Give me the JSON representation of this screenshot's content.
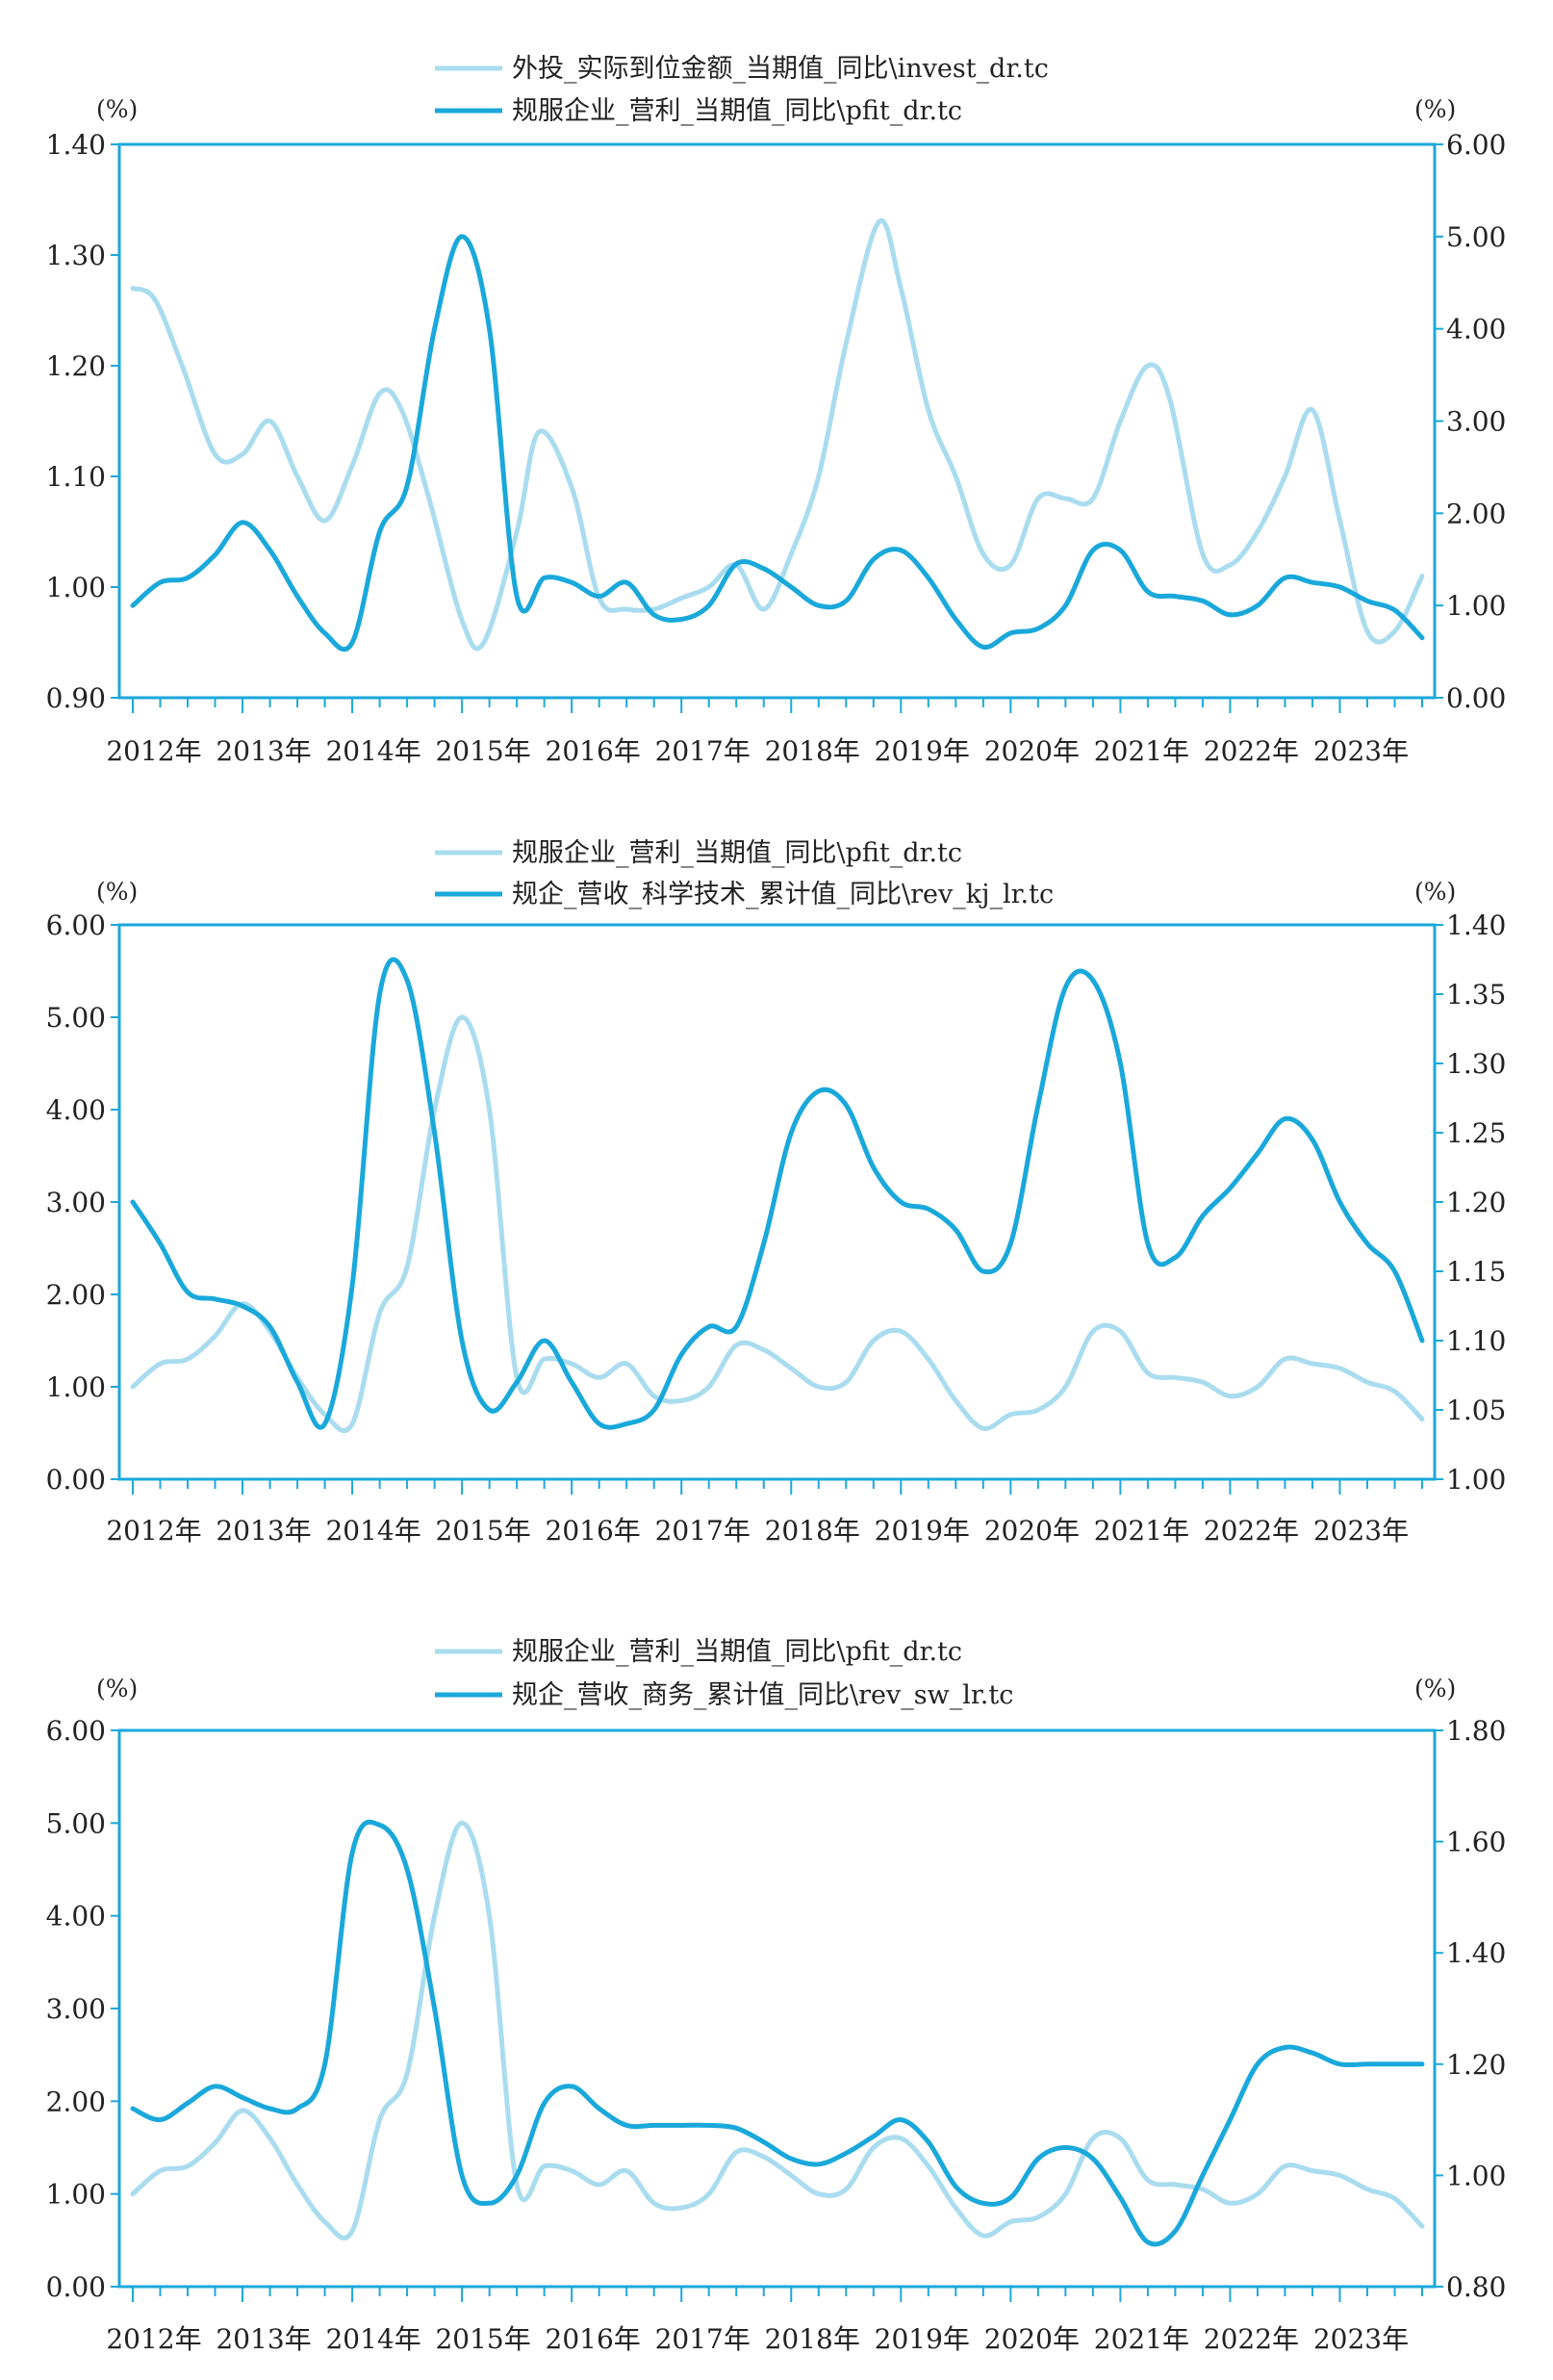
{
  "colors": {
    "light": "#a9dcef",
    "dark": "#1aa8db",
    "frame": "#1aa8db",
    "text": "#222222"
  },
  "chart_data": [
    {
      "type": "line",
      "title": "",
      "x_tick_labels": [
        "2012年",
        "2013年",
        "2014年",
        "2015年",
        "2016年",
        "2017年",
        "2018年",
        "2019年",
        "2020年",
        "2021年",
        "2022年",
        "2023年"
      ],
      "left_axis": {
        "unit": "(%)",
        "ylim": [
          0.9,
          1.4
        ],
        "ticks": [
          "0.90",
          "1.00",
          "1.10",
          "1.20",
          "1.30",
          "1.40"
        ]
      },
      "right_axis": {
        "unit": "(%)",
        "ylim": [
          0.0,
          6.0
        ],
        "ticks": [
          "0.00",
          "1.00",
          "2.00",
          "3.00",
          "4.00",
          "5.00",
          "6.00"
        ]
      },
      "series": [
        {
          "name": "外投_实际到位金额_当期值_同比\\invest_dr.tc",
          "style": "light",
          "axis": "left",
          "x": [
            2012.0,
            2012.2,
            2012.45,
            2012.75,
            2013.0,
            2013.25,
            2013.5,
            2013.75,
            2014.0,
            2014.25,
            2014.45,
            2014.7,
            2015.0,
            2015.2,
            2015.5,
            2015.7,
            2016.0,
            2016.25,
            2016.5,
            2016.75,
            2017.0,
            2017.25,
            2017.5,
            2017.75,
            2018.0,
            2018.25,
            2018.5,
            2018.8,
            2019.0,
            2019.25,
            2019.5,
            2019.75,
            2020.0,
            2020.25,
            2020.5,
            2020.75,
            2021.0,
            2021.25,
            2021.45,
            2021.75,
            2022.0,
            2022.25,
            2022.5,
            2022.75,
            2023.0,
            2023.25,
            2023.5,
            2023.75
          ],
          "values": [
            1.27,
            1.26,
            1.2,
            1.12,
            1.12,
            1.15,
            1.1,
            1.06,
            1.11,
            1.175,
            1.16,
            1.08,
            0.97,
            0.95,
            1.05,
            1.14,
            1.09,
            0.99,
            0.98,
            0.98,
            0.99,
            1.0,
            1.02,
            0.98,
            1.03,
            1.1,
            1.22,
            1.33,
            1.27,
            1.16,
            1.1,
            1.03,
            1.02,
            1.08,
            1.08,
            1.08,
            1.15,
            1.2,
            1.17,
            1.03,
            1.02,
            1.05,
            1.1,
            1.16,
            1.06,
            0.96,
            0.96,
            1.01
          ]
        },
        {
          "name": "规服企业_营利_当期值_同比\\pfit_dr.tc",
          "style": "dark",
          "axis": "right",
          "x": [
            2012.0,
            2012.25,
            2012.5,
            2012.75,
            2013.0,
            2013.25,
            2013.5,
            2013.75,
            2014.0,
            2014.25,
            2014.5,
            2014.75,
            2015.0,
            2015.25,
            2015.5,
            2015.75,
            2016.0,
            2016.25,
            2016.5,
            2016.75,
            2017.0,
            2017.25,
            2017.5,
            2017.75,
            2018.0,
            2018.25,
            2018.5,
            2018.75,
            2019.0,
            2019.25,
            2019.5,
            2019.75,
            2020.0,
            2020.25,
            2020.5,
            2020.75,
            2021.0,
            2021.25,
            2021.5,
            2021.75,
            2022.0,
            2022.25,
            2022.5,
            2022.75,
            2023.0,
            2023.25,
            2023.5,
            2023.75
          ],
          "values": [
            1.0,
            1.25,
            1.3,
            1.55,
            1.9,
            1.6,
            1.1,
            0.7,
            0.6,
            1.8,
            2.3,
            4.0,
            5.0,
            4.0,
            1.1,
            1.3,
            1.25,
            1.1,
            1.25,
            0.9,
            0.85,
            1.0,
            1.45,
            1.4,
            1.2,
            1.0,
            1.05,
            1.5,
            1.6,
            1.3,
            0.85,
            0.55,
            0.7,
            0.75,
            1.0,
            1.6,
            1.6,
            1.15,
            1.1,
            1.05,
            0.9,
            1.0,
            1.3,
            1.25,
            1.2,
            1.05,
            0.95,
            0.65
          ]
        }
      ]
    },
    {
      "type": "line",
      "title": "",
      "x_tick_labels": [
        "2012年",
        "2013年",
        "2014年",
        "2015年",
        "2016年",
        "2017年",
        "2018年",
        "2019年",
        "2020年",
        "2021年",
        "2022年",
        "2023年"
      ],
      "left_axis": {
        "unit": "(%)",
        "ylim": [
          0.0,
          6.0
        ],
        "ticks": [
          "0.00",
          "1.00",
          "2.00",
          "3.00",
          "4.00",
          "5.00",
          "6.00"
        ]
      },
      "right_axis": {
        "unit": "(%)",
        "ylim": [
          1.0,
          1.4
        ],
        "ticks": [
          "1.00",
          "1.05",
          "1.10",
          "1.15",
          "1.20",
          "1.25",
          "1.30",
          "1.35",
          "1.40"
        ]
      },
      "series": [
        {
          "name": "规服企业_营利_当期值_同比\\pfit_dr.tc",
          "style": "light",
          "axis": "left",
          "x": [
            2012.0,
            2012.25,
            2012.5,
            2012.75,
            2013.0,
            2013.25,
            2013.5,
            2013.75,
            2014.0,
            2014.25,
            2014.5,
            2014.75,
            2015.0,
            2015.25,
            2015.5,
            2015.75,
            2016.0,
            2016.25,
            2016.5,
            2016.75,
            2017.0,
            2017.25,
            2017.5,
            2017.75,
            2018.0,
            2018.25,
            2018.5,
            2018.75,
            2019.0,
            2019.25,
            2019.5,
            2019.75,
            2020.0,
            2020.25,
            2020.5,
            2020.75,
            2021.0,
            2021.25,
            2021.5,
            2021.75,
            2022.0,
            2022.25,
            2022.5,
            2022.75,
            2023.0,
            2023.25,
            2023.5,
            2023.75
          ],
          "values": [
            1.0,
            1.25,
            1.3,
            1.55,
            1.9,
            1.6,
            1.1,
            0.7,
            0.6,
            1.8,
            2.3,
            4.0,
            5.0,
            4.0,
            1.1,
            1.3,
            1.25,
            1.1,
            1.25,
            0.9,
            0.85,
            1.0,
            1.45,
            1.4,
            1.2,
            1.0,
            1.05,
            1.5,
            1.6,
            1.3,
            0.85,
            0.55,
            0.7,
            0.75,
            1.0,
            1.6,
            1.6,
            1.15,
            1.1,
            1.05,
            0.9,
            1.0,
            1.3,
            1.25,
            1.2,
            1.05,
            0.95,
            0.65
          ]
        },
        {
          "name": "规企_营收_科学技术_累计值_同比\\rev_kj_lr.tc",
          "style": "dark",
          "axis": "right",
          "x": [
            2012.0,
            2012.25,
            2012.5,
            2012.75,
            2013.0,
            2013.25,
            2013.5,
            2013.75,
            2014.0,
            2014.25,
            2014.5,
            2014.75,
            2015.0,
            2015.25,
            2015.5,
            2015.75,
            2016.0,
            2016.25,
            2016.5,
            2016.75,
            2017.0,
            2017.25,
            2017.5,
            2017.75,
            2018.0,
            2018.25,
            2018.5,
            2018.75,
            2019.0,
            2019.25,
            2019.5,
            2019.75,
            2020.0,
            2020.25,
            2020.5,
            2020.75,
            2021.0,
            2021.25,
            2021.5,
            2021.75,
            2022.0,
            2022.25,
            2022.5,
            2022.75,
            2023.0,
            2023.25,
            2023.5,
            2023.75
          ],
          "values": [
            1.2,
            1.17,
            1.135,
            1.13,
            1.125,
            1.11,
            1.07,
            1.04,
            1.14,
            1.35,
            1.36,
            1.25,
            1.1,
            1.05,
            1.07,
            1.1,
            1.07,
            1.04,
            1.04,
            1.05,
            1.09,
            1.11,
            1.11,
            1.17,
            1.25,
            1.28,
            1.27,
            1.225,
            1.2,
            1.195,
            1.18,
            1.15,
            1.17,
            1.27,
            1.355,
            1.36,
            1.3,
            1.17,
            1.16,
            1.19,
            1.21,
            1.235,
            1.26,
            1.245,
            1.2,
            1.17,
            1.15,
            1.1
          ]
        }
      ]
    },
    {
      "type": "line",
      "title": "",
      "x_tick_labels": [
        "2012年",
        "2013年",
        "2014年",
        "2015年",
        "2016年",
        "2017年",
        "2018年",
        "2019年",
        "2020年",
        "2021年",
        "2022年",
        "2023年"
      ],
      "left_axis": {
        "unit": "(%)",
        "ylim": [
          0.0,
          6.0
        ],
        "ticks": [
          "0.00",
          "1.00",
          "2.00",
          "3.00",
          "4.00",
          "5.00",
          "6.00"
        ]
      },
      "right_axis": {
        "unit": "(%)",
        "ylim": [
          0.8,
          1.8
        ],
        "ticks": [
          "0.80",
          "1.00",
          "1.20",
          "1.40",
          "1.60",
          "1.80"
        ]
      },
      "series": [
        {
          "name": "规服企业_营利_当期值_同比\\pfit_dr.tc",
          "style": "light",
          "axis": "left",
          "x": [
            2012.0,
            2012.25,
            2012.5,
            2012.75,
            2013.0,
            2013.25,
            2013.5,
            2013.75,
            2014.0,
            2014.25,
            2014.5,
            2014.75,
            2015.0,
            2015.25,
            2015.5,
            2015.75,
            2016.0,
            2016.25,
            2016.5,
            2016.75,
            2017.0,
            2017.25,
            2017.5,
            2017.75,
            2018.0,
            2018.25,
            2018.5,
            2018.75,
            2019.0,
            2019.25,
            2019.5,
            2019.75,
            2020.0,
            2020.25,
            2020.5,
            2020.75,
            2021.0,
            2021.25,
            2021.5,
            2021.75,
            2022.0,
            2022.25,
            2022.5,
            2022.75,
            2023.0,
            2023.25,
            2023.5,
            2023.75
          ],
          "values": [
            1.0,
            1.25,
            1.3,
            1.55,
            1.9,
            1.6,
            1.1,
            0.7,
            0.6,
            1.8,
            2.3,
            4.0,
            5.0,
            4.0,
            1.1,
            1.3,
            1.25,
            1.1,
            1.25,
            0.9,
            0.85,
            1.0,
            1.45,
            1.4,
            1.2,
            1.0,
            1.05,
            1.5,
            1.6,
            1.3,
            0.85,
            0.55,
            0.7,
            0.75,
            1.0,
            1.6,
            1.6,
            1.15,
            1.1,
            1.05,
            0.9,
            1.0,
            1.3,
            1.25,
            1.2,
            1.05,
            0.95,
            0.65
          ]
        },
        {
          "name": "规企_营收_商务_累计值_同比\\rev_sw_lr.tc",
          "style": "dark",
          "axis": "right",
          "x": [
            2012.0,
            2012.25,
            2012.5,
            2012.75,
            2013.0,
            2013.25,
            2013.5,
            2013.75,
            2014.0,
            2014.25,
            2014.5,
            2014.75,
            2015.0,
            2015.25,
            2015.5,
            2015.75,
            2016.0,
            2016.25,
            2016.5,
            2016.75,
            2017.0,
            2017.25,
            2017.5,
            2017.75,
            2018.0,
            2018.25,
            2018.5,
            2018.75,
            2019.0,
            2019.25,
            2019.5,
            2019.75,
            2020.0,
            2020.25,
            2020.5,
            2020.75,
            2021.0,
            2021.25,
            2021.5,
            2021.75,
            2022.0,
            2022.25,
            2022.5,
            2022.75,
            2023.0,
            2023.25,
            2023.5,
            2023.75
          ],
          "values": [
            1.12,
            1.1,
            1.13,
            1.16,
            1.14,
            1.12,
            1.12,
            1.2,
            1.58,
            1.63,
            1.55,
            1.3,
            1.0,
            0.95,
            1.0,
            1.13,
            1.16,
            1.12,
            1.09,
            1.09,
            1.09,
            1.09,
            1.085,
            1.06,
            1.03,
            1.02,
            1.04,
            1.07,
            1.1,
            1.06,
            0.98,
            0.95,
            0.96,
            1.03,
            1.05,
            1.03,
            0.96,
            0.88,
            0.9,
            1.0,
            1.1,
            1.2,
            1.23,
            1.22,
            1.2,
            1.2,
            1.2,
            1.2
          ]
        }
      ]
    }
  ]
}
